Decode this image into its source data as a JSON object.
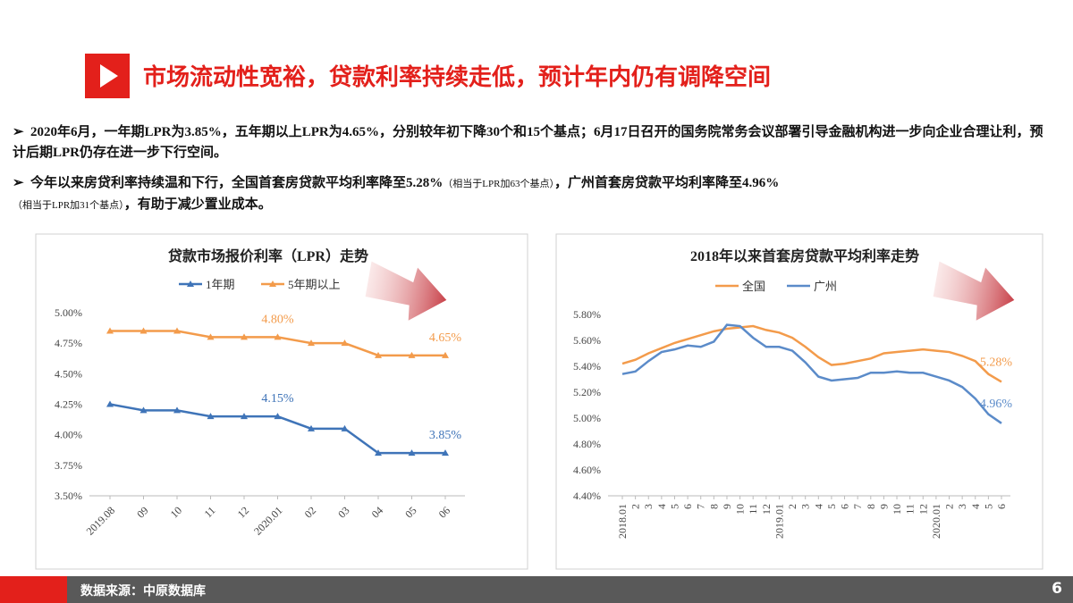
{
  "header": {
    "title": "市场流动性宽裕，贷款利率持续走低，预计年内仍有调降空间"
  },
  "bullets": [
    {
      "parts": [
        "2020年6月，一年期LPR为3.85%，五年期以上LPR为4.65%，分别较年初下降30个和15个基点；6月17日召开的国务院常务会议部署引导金融机构进一步向企业合理让利，预计后期LPR仍存在进一步下行空间。"
      ]
    },
    {
      "parts": [
        "今年以来房贷利率持续温和下行，全国首套房贷款平均利率降至5.28%",
        "（相当于LPR加63个基点）",
        "，广州首套房贷款平均利率降至4.96%",
        "（相当于LPR加31个基点）",
        "，有助于减少置业成本。"
      ]
    }
  ],
  "chart_data": [
    {
      "type": "line",
      "title": "贷款市场报价利率（LPR）走势",
      "categories": [
        "2019.08",
        "09",
        "10",
        "11",
        "12",
        "2020.01",
        "02",
        "03",
        "04",
        "05",
        "06"
      ],
      "series": [
        {
          "name": "1年期",
          "color": "#3f74b8",
          "values": [
            4.25,
            4.2,
            4.2,
            4.15,
            4.15,
            4.15,
            4.05,
            4.05,
            3.85,
            3.85,
            3.85
          ],
          "value_labels": [
            null,
            null,
            null,
            null,
            null,
            "4.15%",
            null,
            null,
            null,
            null,
            "3.85%"
          ]
        },
        {
          "name": "5年期以上",
          "color": "#f39b4b",
          "values": [
            4.85,
            4.85,
            4.85,
            4.8,
            4.8,
            4.8,
            4.75,
            4.75,
            4.65,
            4.65,
            4.65
          ],
          "value_labels": [
            null,
            null,
            null,
            null,
            null,
            "4.80%",
            null,
            null,
            null,
            null,
            "4.65%"
          ]
        }
      ],
      "ylim": [
        3.5,
        5.0
      ],
      "yticks": [
        {
          "value": 3.5,
          "label": "3.50%"
        },
        {
          "value": 3.75,
          "label": "3.75%"
        },
        {
          "value": 4.0,
          "label": "4.00%"
        },
        {
          "value": 4.25,
          "label": "4.25%"
        },
        {
          "value": 4.5,
          "label": "4.50%"
        },
        {
          "value": 4.75,
          "label": "4.75%"
        },
        {
          "value": 5.0,
          "label": "5.00%"
        }
      ],
      "grid": false,
      "markers": true
    },
    {
      "type": "line",
      "title": "2018年以来首套房贷款平均利率走势",
      "categories": [
        "2018.01",
        "2",
        "3",
        "4",
        "5",
        "6",
        "7",
        "8",
        "9",
        "10",
        "11",
        "12",
        "2019.01",
        "2",
        "3",
        "4",
        "5",
        "6",
        "7",
        "8",
        "9",
        "10",
        "11",
        "12",
        "2020.01",
        "2",
        "3",
        "4",
        "5",
        "6"
      ],
      "series": [
        {
          "name": "全国",
          "color": "#f39b4b",
          "values": [
            5.42,
            5.45,
            5.5,
            5.54,
            5.58,
            5.61,
            5.64,
            5.67,
            5.69,
            5.7,
            5.71,
            5.68,
            5.66,
            5.62,
            5.55,
            5.47,
            5.41,
            5.42,
            5.44,
            5.46,
            5.5,
            5.51,
            5.52,
            5.53,
            5.52,
            5.51,
            5.48,
            5.44,
            5.34,
            5.28
          ],
          "value_labels": [
            null,
            null,
            null,
            null,
            null,
            null,
            null,
            null,
            null,
            null,
            null,
            null,
            null,
            null,
            null,
            null,
            null,
            null,
            null,
            null,
            null,
            null,
            null,
            null,
            null,
            null,
            null,
            null,
            null,
            "5.28%"
          ]
        },
        {
          "name": "广州",
          "color": "#5b8bc9",
          "values": [
            5.34,
            5.36,
            5.44,
            5.51,
            5.53,
            5.56,
            5.55,
            5.59,
            5.72,
            5.71,
            5.62,
            5.55,
            5.55,
            5.52,
            5.43,
            5.32,
            5.29,
            5.3,
            5.31,
            5.35,
            5.35,
            5.36,
            5.35,
            5.35,
            5.32,
            5.29,
            5.24,
            5.15,
            5.03,
            4.96
          ],
          "value_labels": [
            null,
            null,
            null,
            null,
            null,
            null,
            null,
            null,
            null,
            null,
            null,
            null,
            null,
            null,
            null,
            null,
            null,
            null,
            null,
            null,
            null,
            null,
            null,
            null,
            null,
            null,
            null,
            null,
            null,
            "4.96%"
          ]
        }
      ],
      "ylim": [
        4.4,
        5.8
      ],
      "yticks": [
        {
          "value": 4.4,
          "label": "4.40%"
        },
        {
          "value": 4.6,
          "label": "4.60%"
        },
        {
          "value": 4.8,
          "label": "4.80%"
        },
        {
          "value": 5.0,
          "label": "5.00%"
        },
        {
          "value": 5.2,
          "label": "5.20%"
        },
        {
          "value": 5.4,
          "label": "5.40%"
        },
        {
          "value": 5.6,
          "label": "5.60%"
        },
        {
          "value": 5.8,
          "label": "5.80%"
        }
      ],
      "grid": false,
      "markers": false
    }
  ],
  "footer": {
    "source": "数据来源：中原数据库",
    "page": "6"
  }
}
